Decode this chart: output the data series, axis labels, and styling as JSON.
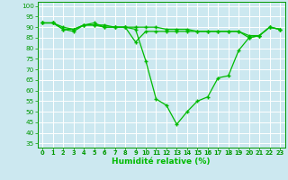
{
  "background_color": "#cce8f0",
  "grid_color": "#ffffff",
  "line_color": "#00bb00",
  "marker_color": "#00bb00",
  "xlabel": "Humidité relative (%)",
  "ylabel_ticks": [
    35,
    40,
    45,
    50,
    55,
    60,
    65,
    70,
    75,
    80,
    85,
    90,
    95,
    100
  ],
  "xlim": [
    -0.5,
    23.5
  ],
  "ylim": [
    33,
    102
  ],
  "xticks": [
    0,
    1,
    2,
    3,
    4,
    5,
    6,
    7,
    8,
    9,
    10,
    11,
    12,
    13,
    14,
    15,
    16,
    17,
    18,
    19,
    20,
    21,
    22,
    23
  ],
  "series": [
    {
      "x": [
        0,
        1,
        2,
        3,
        4,
        5,
        6,
        7,
        8,
        9,
        10,
        11,
        12,
        13,
        14,
        15,
        16,
        17,
        18,
        19,
        20,
        21,
        22,
        23
      ],
      "y": [
        92,
        92,
        89,
        88,
        91,
        91,
        91,
        90,
        90,
        89,
        74,
        56,
        53,
        44,
        50,
        55,
        57,
        66,
        67,
        79,
        85,
        86,
        90,
        89
      ]
    },
    {
      "x": [
        0,
        1,
        2,
        3,
        4,
        5,
        6,
        7,
        8,
        9,
        10,
        11,
        12,
        13,
        14,
        15,
        16,
        17,
        18,
        19,
        20,
        21,
        22,
        23
      ],
      "y": [
        92,
        92,
        90,
        89,
        91,
        91,
        90,
        90,
        90,
        90,
        90,
        90,
        89,
        89,
        89,
        88,
        88,
        88,
        88,
        88,
        86,
        86,
        90,
        89
      ]
    },
    {
      "x": [
        0,
        1,
        2,
        3,
        4,
        5,
        6,
        7,
        8,
        9,
        10,
        11,
        12,
        13,
        14,
        15,
        16,
        17,
        18,
        19,
        20,
        21,
        22,
        23
      ],
      "y": [
        92,
        92,
        89,
        89,
        91,
        92,
        90,
        90,
        90,
        83,
        88,
        88,
        88,
        88,
        88,
        88,
        88,
        88,
        88,
        88,
        85,
        86,
        90,
        89
      ]
    }
  ]
}
